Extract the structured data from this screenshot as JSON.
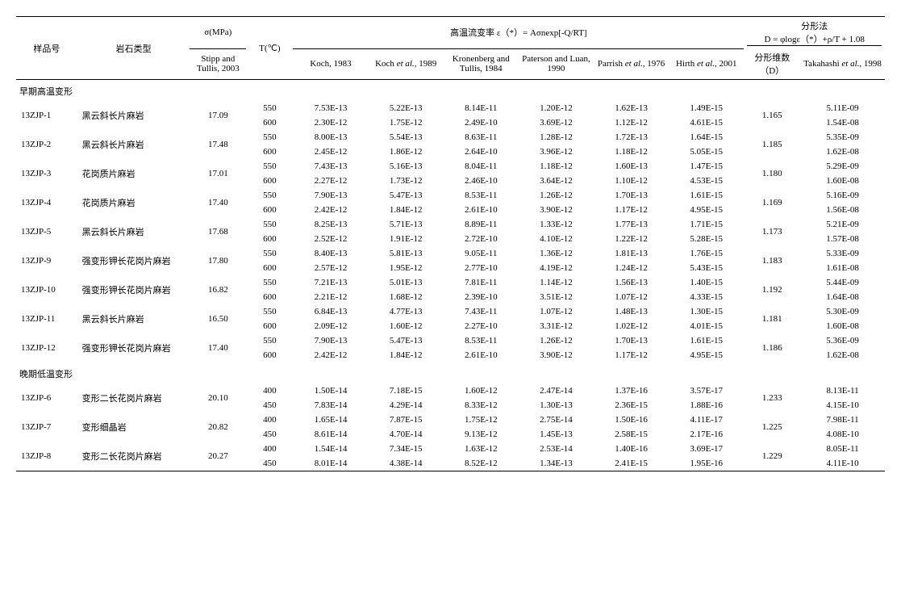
{
  "headers": {
    "sample": "样品号",
    "rock_type": "岩石类型",
    "sigma": "σ(MPa)",
    "sigma_sub": "Stipp and Tullis, 2003",
    "temp": "T(℃)",
    "flow_rate": "高温流变率 ε（*）= Aσnexp[-Q/RT]",
    "koch83": "Koch, 1983",
    "koch89": "Koch et al., 1989",
    "kronenberg84": "Kronenberg and Tullis, 1984",
    "paterson90": "Paterson and Luan, 1990",
    "parrish76": "Parrish et al., 1976",
    "hirth01": "Hirth et al., 2001",
    "fractal": "分形法",
    "fractal_eq": "D = φlogε（*）+ρ/T + 1.08",
    "fractal_d": "分形维数（D）",
    "takahashi98": "Takahashi et al., 1998"
  },
  "sections": {
    "early": "早期高温变形",
    "late": "晚期低温变形"
  },
  "early_rows": [
    {
      "id": "13ZJP-1",
      "rock": "黑云斜长片麻岩",
      "sigma": "17.09",
      "d": "1.165",
      "t": [
        {
          "T": "550",
          "k83": "7.53E-13",
          "k89": "5.22E-13",
          "kt84": "8.14E-11",
          "pl90": "1.20E-12",
          "p76": "1.62E-13",
          "h01": "1.49E-15",
          "taka": "5.11E-09"
        },
        {
          "T": "600",
          "k83": "2.30E-12",
          "k89": "1.75E-12",
          "kt84": "2.49E-10",
          "pl90": "3.69E-12",
          "p76": "1.12E-12",
          "h01": "4.61E-15",
          "taka": "1.54E-08"
        }
      ]
    },
    {
      "id": "13ZJP-2",
      "rock": "黑云斜长片麻岩",
      "sigma": "17.48",
      "d": "1.185",
      "t": [
        {
          "T": "550",
          "k83": "8.00E-13",
          "k89": "5.54E-13",
          "kt84": "8.63E-11",
          "pl90": "1.28E-12",
          "p76": "1.72E-13",
          "h01": "1.64E-15",
          "taka": "5.35E-09"
        },
        {
          "T": "600",
          "k83": "2.45E-12",
          "k89": "1.86E-12",
          "kt84": "2.64E-10",
          "pl90": "3.96E-12",
          "p76": "1.18E-12",
          "h01": "5.05E-15",
          "taka": "1.62E-08"
        }
      ]
    },
    {
      "id": "13ZJP-3",
      "rock": "花岗质片麻岩",
      "sigma": "17.01",
      "d": "1.180",
      "t": [
        {
          "T": "550",
          "k83": "7.43E-13",
          "k89": "5.16E-13",
          "kt84": "8.04E-11",
          "pl90": "1.18E-12",
          "p76": "1.60E-13",
          "h01": "1.47E-15",
          "taka": "5.29E-09"
        },
        {
          "T": "600",
          "k83": "2.27E-12",
          "k89": "1.73E-12",
          "kt84": "2.46E-10",
          "pl90": "3.64E-12",
          "p76": "1.10E-12",
          "h01": "4.53E-15",
          "taka": "1.60E-08"
        }
      ]
    },
    {
      "id": "13ZJP-4",
      "rock": "花岗质片麻岩",
      "sigma": "17.40",
      "d": "1.169",
      "t": [
        {
          "T": "550",
          "k83": "7.90E-13",
          "k89": "5.47E-13",
          "kt84": "8.53E-11",
          "pl90": "1.26E-12",
          "p76": "1.70E-13",
          "h01": "1.61E-15",
          "taka": "5.16E-09"
        },
        {
          "T": "600",
          "k83": "2.42E-12",
          "k89": "1.84E-12",
          "kt84": "2.61E-10",
          "pl90": "3.90E-12",
          "p76": "1.17E-12",
          "h01": "4.95E-15",
          "taka": "1.56E-08"
        }
      ]
    },
    {
      "id": "13ZJP-5",
      "rock": "黑云斜长片麻岩",
      "sigma": "17.68",
      "d": "1.173",
      "t": [
        {
          "T": "550",
          "k83": "8.25E-13",
          "k89": "5.71E-13",
          "kt84": "8.89E-11",
          "pl90": "1.33E-12",
          "p76": "1.77E-13",
          "h01": "1.71E-15",
          "taka": "5.21E-09"
        },
        {
          "T": "600",
          "k83": "2.52E-12",
          "k89": "1.91E-12",
          "kt84": "2.72E-10",
          "pl90": "4.10E-12",
          "p76": "1.22E-12",
          "h01": "5.28E-15",
          "taka": "1.57E-08"
        }
      ]
    },
    {
      "id": "13ZJP-9",
      "rock": "强变形钾长花岗片麻岩",
      "sigma": "17.80",
      "d": "1.183",
      "t": [
        {
          "T": "550",
          "k83": "8.40E-13",
          "k89": "5.81E-13",
          "kt84": "9.05E-11",
          "pl90": "1.36E-12",
          "p76": "1.81E-13",
          "h01": "1.76E-15",
          "taka": "5.33E-09"
        },
        {
          "T": "600",
          "k83": "2.57E-12",
          "k89": "1.95E-12",
          "kt84": "2.77E-10",
          "pl90": "4.19E-12",
          "p76": "1.24E-12",
          "h01": "5.43E-15",
          "taka": "1.61E-08"
        }
      ]
    },
    {
      "id": "13ZJP-10",
      "rock": "强变形钾长花岗片麻岩",
      "sigma": "16.82",
      "d": "1.192",
      "t": [
        {
          "T": "550",
          "k83": "7.21E-13",
          "k89": "5.01E-13",
          "kt84": "7.81E-11",
          "pl90": "1.14E-12",
          "p76": "1.56E-13",
          "h01": "1.40E-15",
          "taka": "5.44E-09"
        },
        {
          "T": "600",
          "k83": "2.21E-12",
          "k89": "1.68E-12",
          "kt84": "2.39E-10",
          "pl90": "3.51E-12",
          "p76": "1.07E-12",
          "h01": "4.33E-15",
          "taka": "1.64E-08"
        }
      ]
    },
    {
      "id": "13ZJP-11",
      "rock": "黑云斜长片麻岩",
      "sigma": "16.50",
      "d": "1.181",
      "t": [
        {
          "T": "550",
          "k83": "6.84E-13",
          "k89": "4.77E-13",
          "kt84": "7.43E-11",
          "pl90": "1.07E-12",
          "p76": "1.48E-13",
          "h01": "1.30E-15",
          "taka": "5.30E-09"
        },
        {
          "T": "600",
          "k83": "2.09E-12",
          "k89": "1.60E-12",
          "kt84": "2.27E-10",
          "pl90": "3.31E-12",
          "p76": "1.02E-12",
          "h01": "4.01E-15",
          "taka": "1.60E-08"
        }
      ]
    },
    {
      "id": "13ZJP-12",
      "rock": "强变形钾长花岗片麻岩",
      "sigma": "17.40",
      "d": "1.186",
      "t": [
        {
          "T": "550",
          "k83": "7.90E-13",
          "k89": "5.47E-13",
          "kt84": "8.53E-11",
          "pl90": "1.26E-12",
          "p76": "1.70E-13",
          "h01": "1.61E-15",
          "taka": "5.36E-09"
        },
        {
          "T": "600",
          "k83": "2.42E-12",
          "k89": "1.84E-12",
          "kt84": "2.61E-10",
          "pl90": "3.90E-12",
          "p76": "1.17E-12",
          "h01": "4.95E-15",
          "taka": "1.62E-08"
        }
      ]
    }
  ],
  "late_rows": [
    {
      "id": "13ZJP-6",
      "rock": "变形二长花岗片麻岩",
      "sigma": "20.10",
      "d": "1.233",
      "t": [
        {
          "T": "400",
          "k83": "1.50E-14",
          "k89": "7.18E-15",
          "kt84": "1.60E-12",
          "pl90": "2.47E-14",
          "p76": "1.37E-16",
          "h01": "3.57E-17",
          "taka": "8.13E-11"
        },
        {
          "T": "450",
          "k83": "7.83E-14",
          "k89": "4.29E-14",
          "kt84": "8.33E-12",
          "pl90": "1.30E-13",
          "p76": "2.36E-15",
          "h01": "1.88E-16",
          "taka": "4.15E-10"
        }
      ]
    },
    {
      "id": "13ZJP-7",
      "rock": "变形细晶岩",
      "sigma": "20.82",
      "d": "1.225",
      "t": [
        {
          "T": "400",
          "k83": "1.65E-14",
          "k89": "7.87E-15",
          "kt84": "1.75E-12",
          "pl90": "2.75E-14",
          "p76": "1.50E-16",
          "h01": "4.11E-17",
          "taka": "7.98E-11"
        },
        {
          "T": "450",
          "k83": "8.61E-14",
          "k89": "4.70E-14",
          "kt84": "9.13E-12",
          "pl90": "1.45E-13",
          "p76": "2.58E-15",
          "h01": "2.17E-16",
          "taka": "4.08E-10"
        }
      ]
    },
    {
      "id": "13ZJP-8",
      "rock": "变形二长花岗片麻岩",
      "sigma": "20.27",
      "d": "1.229",
      "t": [
        {
          "T": "400",
          "k83": "1.54E-14",
          "k89": "7.34E-15",
          "kt84": "1.63E-12",
          "pl90": "2.53E-14",
          "p76": "1.40E-16",
          "h01": "3.69E-17",
          "taka": "8.05E-11"
        },
        {
          "T": "450",
          "k83": "8.01E-14",
          "k89": "4.38E-14",
          "kt84": "8.52E-12",
          "pl90": "1.34E-13",
          "p76": "2.41E-15",
          "h01": "1.95E-16",
          "taka": "4.11E-10"
        }
      ]
    }
  ]
}
